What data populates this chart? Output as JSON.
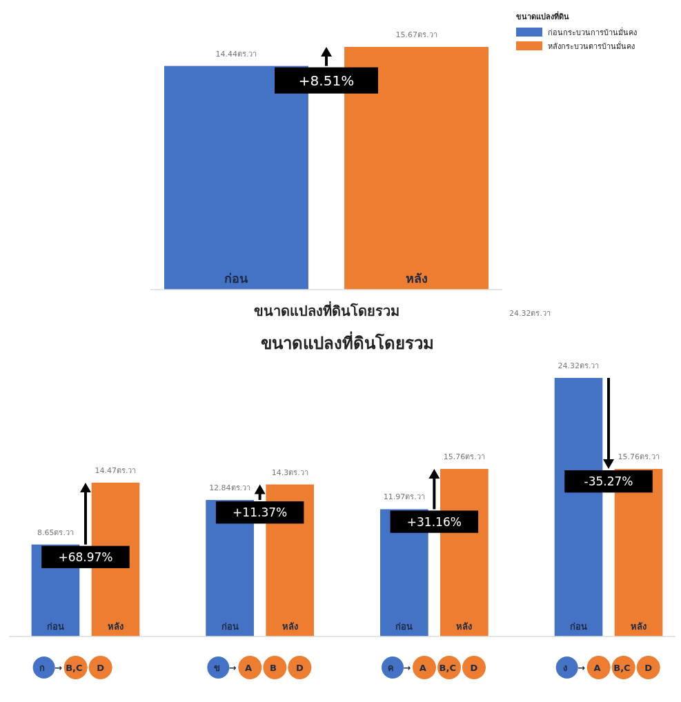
{
  "chart_data": [
    {
      "type": "bar",
      "stacked": true,
      "categories": [
        "ก่อน",
        "หลัง"
      ],
      "xlabel": "ขนาดแปลงที่ดินโดยรวม",
      "legend_title": "ขนาดแปลงที่ดิน",
      "legend": "top right",
      "series": [
        {
          "name": "ก่อนกระบวนการบ้านมั่นคง",
          "color": "#4472c4",
          "values": [
            14.44,
            null
          ],
          "value_labels": [
            "14.44ตร.วา",
            null
          ]
        },
        {
          "name": "หลังกระบวนตารบ้านมั่นคง",
          "color": "#ed7d31",
          "values": [
            null,
            15.67
          ],
          "value_labels": [
            null,
            "15.67ตร.วา"
          ]
        }
      ],
      "annotations": [
        "+8.51%",
        "24.32ตร.วา"
      ]
    },
    {
      "type": "bar",
      "title": "ขนาดแปลงที่ดินโดยรวม",
      "categories": [
        "ก → B,C D",
        "ข → A B D",
        "ค → A B,C D",
        "ง → A B,C D"
      ],
      "series": [
        {
          "name": "ก่อน",
          "color": "#4472c4",
          "values": [
            8.65,
            12.84,
            11.97,
            24.32
          ],
          "value_labels": [
            "8.65ตร.วา",
            "12.84ตร.วา",
            "11.97ตร.วา",
            "24.32ตร.วา"
          ]
        },
        {
          "name": "หลัง",
          "color": "#ed7d31",
          "values": [
            14.47,
            14.3,
            15.76,
            15.76
          ],
          "value_labels": [
            "14.47ตร.วา",
            "14.3ตร.วา",
            "15.76ตร.วา",
            "15.76ตร.วา"
          ]
        }
      ],
      "annotations": [
        "+68.97%",
        "+11.37%",
        "+31.16%",
        "-35.27%"
      ]
    }
  ]
}
